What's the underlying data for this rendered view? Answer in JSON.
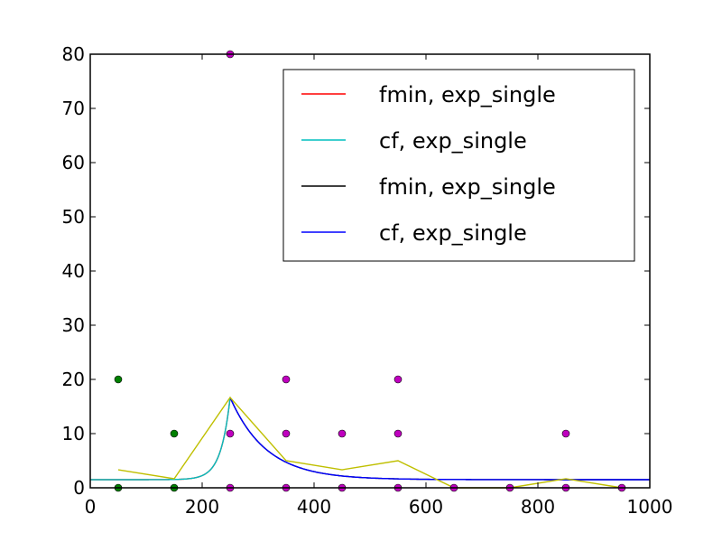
{
  "chart_data": {
    "type": "line",
    "title": "",
    "xlabel": "",
    "ylabel": "",
    "xlim": [
      0,
      1000
    ],
    "ylim": [
      0,
      80
    ],
    "xticks": [
      0,
      200,
      400,
      600,
      800,
      1000
    ],
    "yticks": [
      0,
      10,
      20,
      30,
      40,
      50,
      60,
      70,
      80
    ],
    "grid": false,
    "legend_position": "top-right",
    "legend": [
      {
        "label": "fmin, exp_single",
        "color": "#ff0000"
      },
      {
        "label": "cf, exp_single",
        "color": "#00bfbf"
      },
      {
        "label": "fmin, exp_single",
        "color": "#000000"
      },
      {
        "label": "cf, exp_single",
        "color": "#0000ff"
      }
    ],
    "scatter_series": [
      {
        "color": "#008000",
        "points": [
          [
            50,
            20
          ],
          [
            50,
            0
          ],
          [
            150,
            10
          ],
          [
            150,
            0
          ]
        ]
      },
      {
        "color": "#bf00bf",
        "points": [
          [
            250,
            80
          ],
          [
            250,
            10
          ],
          [
            250,
            0
          ],
          [
            350,
            20
          ],
          [
            350,
            10
          ],
          [
            350,
            0
          ],
          [
            450,
            10
          ],
          [
            450,
            0
          ],
          [
            550,
            20
          ],
          [
            550,
            10
          ],
          [
            550,
            0
          ],
          [
            650,
            0
          ],
          [
            750,
            0
          ],
          [
            850,
            10
          ],
          [
            850,
            0
          ],
          [
            950,
            0
          ]
        ]
      }
    ],
    "mean_line": {
      "color": "#bfbf00",
      "x": [
        50,
        150,
        250,
        350,
        450,
        550,
        650,
        750,
        850,
        950
      ],
      "y": [
        3.33,
        1.67,
        16.67,
        5.0,
        3.33,
        5.0,
        0,
        0,
        1.67,
        0
      ]
    },
    "fit_curves": [
      {
        "color": "#ff0000",
        "side": "left",
        "x_start": 0,
        "x_peak": 250,
        "peak": 16.67,
        "baseline": 1.5,
        "rate": 0.06
      },
      {
        "color": "#00bfbf",
        "side": "left",
        "x_start": 0,
        "x_peak": 250,
        "peak": 16.67,
        "baseline": 1.5,
        "rate": 0.06
      },
      {
        "color": "#000000",
        "side": "right",
        "x_peak": 250,
        "x_end": 1000,
        "peak": 16.67,
        "baseline": 1.5,
        "rate": 0.0155
      },
      {
        "color": "#0000ff",
        "side": "right",
        "x_peak": 250,
        "x_end": 1000,
        "peak": 16.67,
        "baseline": 1.5,
        "rate": 0.0155
      }
    ]
  }
}
